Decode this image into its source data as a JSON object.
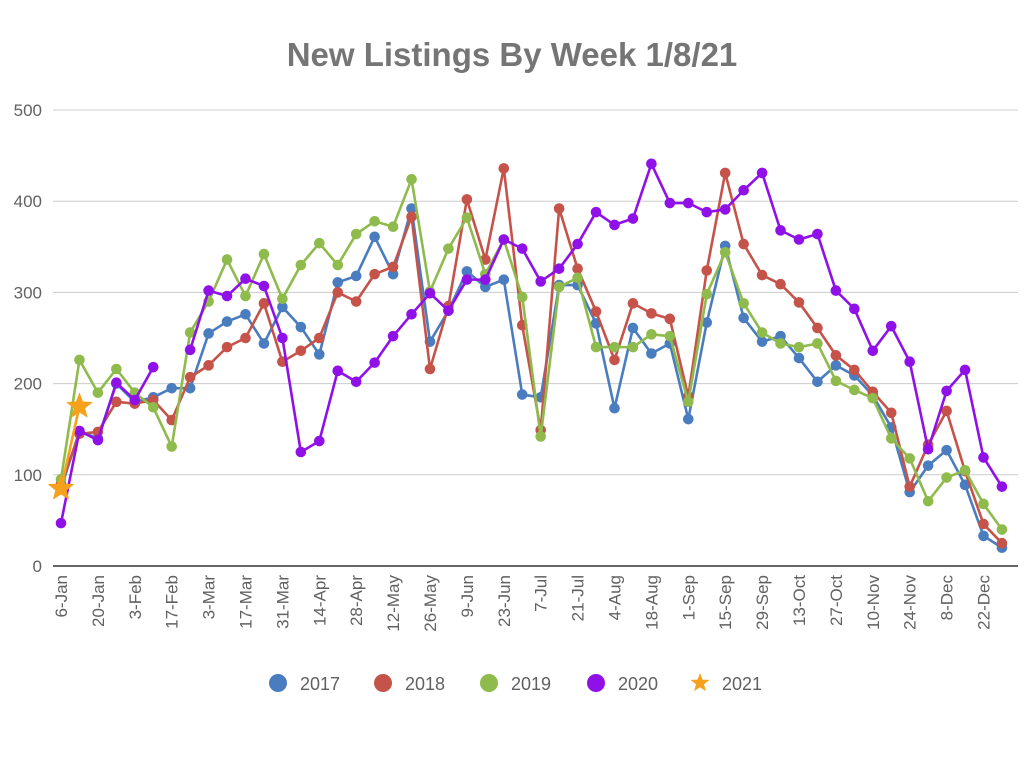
{
  "chart_data": {
    "type": "line",
    "title": "New Listings By Week 1/8/21",
    "xlabel": "",
    "ylabel": "",
    "ylim": [
      0,
      500
    ],
    "yticks": [
      0,
      100,
      200,
      300,
      400,
      500
    ],
    "grid": true,
    "legend_position": "bottom",
    "x_tick_labels": [
      "6-Jan",
      "20-Jan",
      "3-Feb",
      "17-Feb",
      "3-Mar",
      "17-Mar",
      "31-Mar",
      "14-Apr",
      "28-Apr",
      "12-May",
      "26-May",
      "9-Jun",
      "23-Jun",
      "7-Jul",
      "21-Jul",
      "4-Aug",
      "18-Aug",
      "1-Sep",
      "15-Sep",
      "29-Sep",
      "13-Oct",
      "27-Oct",
      "10-Nov",
      "24-Nov",
      "8-Dec",
      "22-Dec"
    ],
    "weeks": 52,
    "series": [
      {
        "name": "2017",
        "color": "#4a7cc0",
        "marker": "circle",
        "values": [
          85,
          148,
          140,
          200,
          180,
          185,
          195,
          195,
          255,
          268,
          276,
          244,
          284,
          262,
          232,
          311,
          318,
          361,
          320,
          392,
          246,
          280,
          323,
          306,
          314,
          188,
          185,
          308,
          308,
          266,
          173,
          261,
          233,
          244,
          161,
          267,
          351,
          272,
          246,
          252,
          228,
          202,
          220,
          209,
          187,
          152,
          81,
          110,
          127,
          89,
          33,
          20
        ]
      },
      {
        "name": "2018",
        "color": "#c5534a",
        "marker": "circle",
        "values": [
          90,
          145,
          147,
          180,
          178,
          182,
          160,
          207,
          220,
          240,
          250,
          288,
          224,
          236,
          250,
          300,
          290,
          320,
          328,
          383,
          216,
          285,
          402,
          336,
          436,
          264,
          149,
          392,
          326,
          279,
          226,
          288,
          277,
          271,
          186,
          324,
          431,
          353,
          319,
          309,
          289,
          261,
          231,
          215,
          191,
          168,
          87,
          133,
          170,
          104,
          46,
          25
        ]
      },
      {
        "name": "2019",
        "color": "#8fba4c",
        "marker": "circle",
        "values": [
          95,
          226,
          190,
          216,
          190,
          174,
          131,
          256,
          290,
          336,
          296,
          342,
          293,
          330,
          354,
          330,
          364,
          378,
          372,
          424,
          301,
          348,
          382,
          320,
          358,
          295,
          142,
          306,
          316,
          240,
          240,
          240,
          254,
          252,
          180,
          298,
          344,
          288,
          256,
          244,
          240,
          244,
          203,
          193,
          184,
          140,
          118,
          71,
          97,
          105,
          68,
          40
        ]
      },
      {
        "name": "2020",
        "color": "#9010e8",
        "marker": "circle",
        "values": [
          47,
          148,
          138,
          201,
          182,
          218,
          null,
          237,
          302,
          296,
          315,
          307,
          250,
          125,
          137,
          214,
          202,
          223,
          252,
          276,
          299,
          280,
          314,
          314,
          358,
          348,
          312,
          326,
          353,
          388,
          374,
          381,
          441,
          398,
          398,
          388,
          391,
          412,
          431,
          368,
          358,
          364,
          302,
          282,
          236,
          263,
          224,
          128,
          192,
          215,
          119,
          87
        ]
      },
      {
        "name": "2021",
        "color": "#f5a11c",
        "marker": "star",
        "values": [
          85,
          175
        ]
      }
    ]
  }
}
